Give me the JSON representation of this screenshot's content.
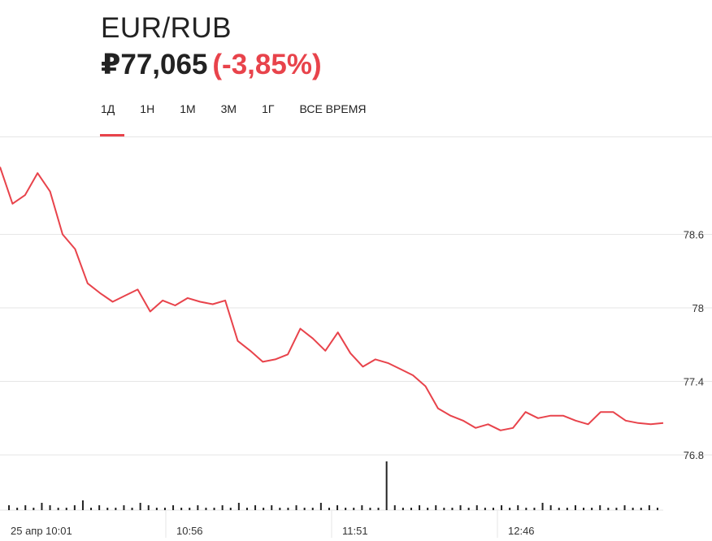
{
  "header": {
    "pair": "EUR/RUB",
    "price": "₽77,065",
    "change": "(-3,85%)"
  },
  "tabs": [
    {
      "label": "1Д",
      "active": true
    },
    {
      "label": "1Н",
      "active": false
    },
    {
      "label": "1М",
      "active": false
    },
    {
      "label": "3М",
      "active": false
    },
    {
      "label": "1Г",
      "active": false
    },
    {
      "label": "ВСЕ ВРЕМЯ",
      "active": false
    }
  ],
  "colors": {
    "line": "#e8434b",
    "grid": "#e6e6e6",
    "volume": "#222222",
    "text": "#222222"
  },
  "chart_data": {
    "type": "line",
    "title": "",
    "xlabel": "",
    "ylabel": "",
    "x_tick_labels": [
      "25 апр 10:01",
      "10:56",
      "11:51",
      "12:46"
    ],
    "y_ticks": [
      78.6,
      78,
      77.4,
      76.8
    ],
    "y_tick_labels": [
      "78.6",
      "78",
      "77.4",
      "76.8"
    ],
    "ylim": [
      76.8,
      79.2
    ],
    "grid": true,
    "series": [
      {
        "values": [
          79.15,
          78.85,
          78.92,
          79.1,
          78.95,
          78.6,
          78.48,
          78.2,
          78.12,
          78.05,
          78.1,
          78.15,
          77.97,
          78.06,
          78.02,
          78.08,
          78.05,
          78.03,
          78.06,
          77.73,
          77.65,
          77.56,
          77.58,
          77.62,
          77.83,
          77.75,
          77.65,
          77.8,
          77.63,
          77.52,
          77.58,
          77.55,
          77.5,
          77.45,
          77.36,
          77.18,
          77.12,
          77.08,
          77.02,
          77.05,
          77.0,
          77.02,
          77.15,
          77.1,
          77.12,
          77.12,
          77.08,
          77.05,
          77.15,
          77.15,
          77.08,
          77.06,
          77.05,
          77.06
        ]
      }
    ],
    "volume": [
      2,
      1,
      2,
      1,
      3,
      2,
      1,
      1,
      2,
      4,
      1,
      2,
      1,
      1,
      2,
      1,
      3,
      2,
      1,
      1,
      2,
      1,
      1,
      2,
      1,
      1,
      2,
      1,
      3,
      1,
      2,
      1,
      2,
      1,
      1,
      2,
      1,
      1,
      3,
      1,
      2,
      1,
      1,
      2,
      1,
      1,
      20,
      2,
      1,
      1,
      2,
      1,
      2,
      1,
      1,
      2,
      1,
      2,
      1,
      1,
      2,
      1,
      2,
      1,
      1,
      3,
      2,
      1,
      1,
      2,
      1,
      1,
      2,
      1,
      1,
      2,
      1,
      1,
      2,
      1
    ]
  }
}
